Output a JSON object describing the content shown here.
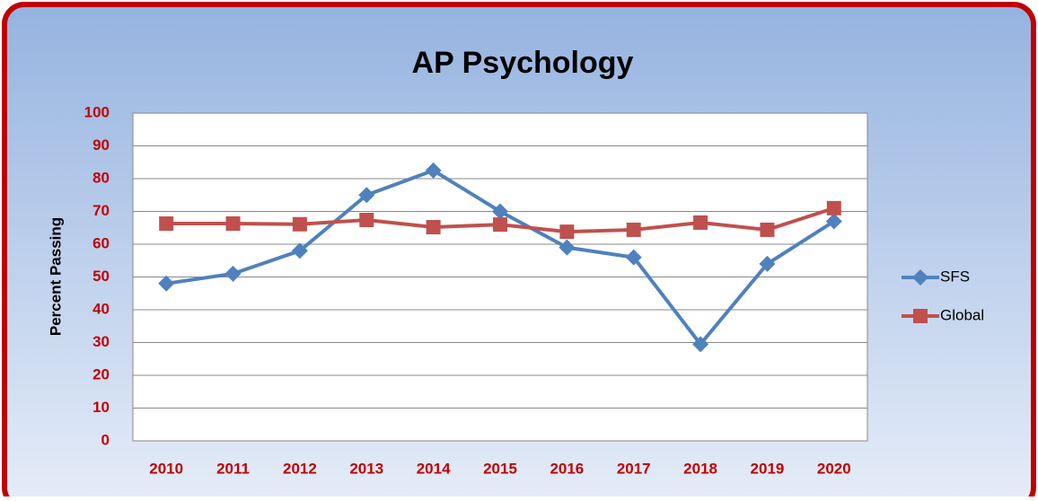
{
  "chart_data": {
    "type": "line",
    "title": "AP Psychology",
    "y_label": "Percent Passing",
    "categories": [
      "2010",
      "2011",
      "2012",
      "2013",
      "2014",
      "2015",
      "2016",
      "2017",
      "2018",
      "2019",
      "2020"
    ],
    "series": [
      {
        "name": "SFS",
        "color": "#4f81bd",
        "marker": "diamond",
        "values": [
          48,
          51,
          58,
          75,
          82.5,
          70,
          59,
          56,
          29.5,
          54,
          67
        ]
      },
      {
        "name": "Global",
        "color": "#c0504d",
        "marker": "square",
        "values": [
          66.3,
          66.3,
          66.1,
          67.4,
          65.2,
          66,
          63.8,
          64.4,
          66.6,
          64.4,
          71
        ]
      }
    ],
    "ylim": [
      0,
      100
    ],
    "yticks": [
      0,
      10,
      20,
      30,
      40,
      50,
      60,
      70,
      80,
      90,
      100
    ],
    "grid": true,
    "legend": "right"
  }
}
